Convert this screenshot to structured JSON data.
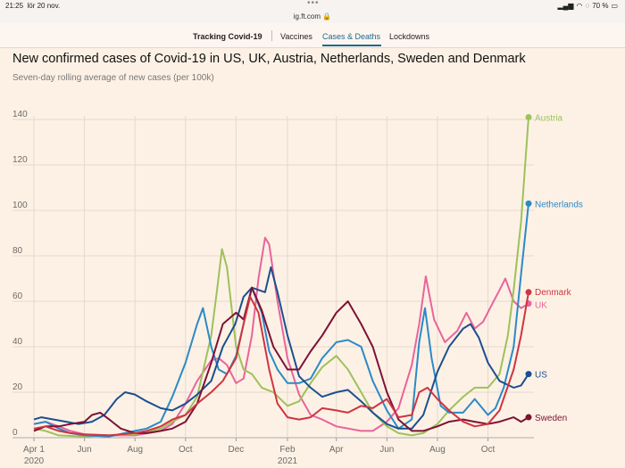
{
  "statusbar": {
    "time": "21:25",
    "date": "lör 20 nov.",
    "battery": "70 %"
  },
  "browser": {
    "url": "ig.ft.com"
  },
  "nav": {
    "brand": "Tracking Covid-19",
    "items": [
      "Vaccines",
      "Cases & Deaths",
      "Lockdowns"
    ],
    "active": "Cases & Deaths"
  },
  "colors": {
    "Austria": "#9dc15b",
    "Netherlands": "#2b8ac8",
    "Denmark": "#cf3441",
    "UK": "#e9649b",
    "US": "#1c4f8f",
    "Sweden": "#7c1235",
    "grid": "#e5d9ce",
    "text": "#6e6a66"
  },
  "chart_data": {
    "type": "line",
    "title": "New confirmed cases of Covid-19 in US, UK, Austria, Netherlands, Sweden and Denmark",
    "subtitle": "Seven-day rolling average of new cases (per 100k)",
    "xlabel": "",
    "ylabel": "",
    "ylim": [
      0,
      140
    ],
    "yticks": [
      0,
      20,
      40,
      60,
      80,
      100,
      120,
      140
    ],
    "grid": true,
    "legend": "line-end labels",
    "x_start": "2020-04-01",
    "x_end": "2021-11-19",
    "xticks": [
      {
        "date": "2020-04-01",
        "label": "Apr 1",
        "sub": "2020"
      },
      {
        "date": "2020-06-01",
        "label": "Jun"
      },
      {
        "date": "2020-08-01",
        "label": "Aug"
      },
      {
        "date": "2020-10-01",
        "label": "Oct"
      },
      {
        "date": "2020-12-01",
        "label": "Dec"
      },
      {
        "date": "2021-02-01",
        "label": "Feb",
        "sub": "2021"
      },
      {
        "date": "2021-04-01",
        "label": "Apr"
      },
      {
        "date": "2021-06-01",
        "label": "Jun"
      },
      {
        "date": "2021-08-01",
        "label": "Aug"
      },
      {
        "date": "2021-10-01",
        "label": "Oct"
      }
    ],
    "series": [
      {
        "name": "US",
        "points": [
          [
            "2020-04-01",
            8
          ],
          [
            "2020-04-10",
            9
          ],
          [
            "2020-04-25",
            8
          ],
          [
            "2020-05-10",
            7
          ],
          [
            "2020-05-25",
            6
          ],
          [
            "2020-06-10",
            7
          ],
          [
            "2020-06-25",
            10
          ],
          [
            "2020-07-10",
            17
          ],
          [
            "2020-07-20",
            20
          ],
          [
            "2020-08-01",
            19
          ],
          [
            "2020-08-15",
            16
          ],
          [
            "2020-09-01",
            13
          ],
          [
            "2020-09-15",
            12
          ],
          [
            "2020-10-01",
            15
          ],
          [
            "2020-10-15",
            19
          ],
          [
            "2020-11-01",
            25
          ],
          [
            "2020-11-15",
            40
          ],
          [
            "2020-11-30",
            50
          ],
          [
            "2020-12-10",
            62
          ],
          [
            "2020-12-20",
            66
          ],
          [
            "2021-01-05",
            64
          ],
          [
            "2021-01-12",
            75
          ],
          [
            "2021-01-20",
            64
          ],
          [
            "2021-02-01",
            45
          ],
          [
            "2021-02-15",
            27
          ],
          [
            "2021-03-01",
            22
          ],
          [
            "2021-03-15",
            18
          ],
          [
            "2021-04-01",
            20
          ],
          [
            "2021-04-15",
            21
          ],
          [
            "2021-05-01",
            16
          ],
          [
            "2021-05-15",
            11
          ],
          [
            "2021-06-01",
            6
          ],
          [
            "2021-06-15",
            4
          ],
          [
            "2021-07-01",
            4
          ],
          [
            "2021-07-15",
            10
          ],
          [
            "2021-08-01",
            29
          ],
          [
            "2021-08-15",
            40
          ],
          [
            "2021-09-01",
            48
          ],
          [
            "2021-09-10",
            50
          ],
          [
            "2021-09-20",
            44
          ],
          [
            "2021-10-01",
            33
          ],
          [
            "2021-10-15",
            25
          ],
          [
            "2021-11-01",
            22
          ],
          [
            "2021-11-10",
            23
          ],
          [
            "2021-11-19",
            28
          ]
        ]
      },
      {
        "name": "UK",
        "points": [
          [
            "2020-04-01",
            6
          ],
          [
            "2020-04-15",
            7
          ],
          [
            "2020-05-01",
            5
          ],
          [
            "2020-05-15",
            3
          ],
          [
            "2020-06-01",
            1.5
          ],
          [
            "2020-07-01",
            1
          ],
          [
            "2020-08-01",
            1
          ],
          [
            "2020-09-01",
            3
          ],
          [
            "2020-09-15",
            6
          ],
          [
            "2020-10-01",
            15
          ],
          [
            "2020-10-15",
            25
          ],
          [
            "2020-11-01",
            34
          ],
          [
            "2020-11-10",
            35
          ],
          [
            "2020-11-20",
            32
          ],
          [
            "2020-12-01",
            24
          ],
          [
            "2020-12-10",
            26
          ],
          [
            "2020-12-20",
            45
          ],
          [
            "2020-12-28",
            70
          ],
          [
            "2021-01-05",
            88
          ],
          [
            "2021-01-10",
            85
          ],
          [
            "2021-01-20",
            60
          ],
          [
            "2021-02-01",
            35
          ],
          [
            "2021-02-15",
            19
          ],
          [
            "2021-03-01",
            10
          ],
          [
            "2021-03-15",
            8
          ],
          [
            "2021-04-01",
            5
          ],
          [
            "2021-05-01",
            3
          ],
          [
            "2021-05-15",
            3
          ],
          [
            "2021-06-01",
            7
          ],
          [
            "2021-06-15",
            13
          ],
          [
            "2021-07-01",
            32
          ],
          [
            "2021-07-10",
            50
          ],
          [
            "2021-07-18,",
            71
          ],
          [
            "2021-07-28",
            52
          ],
          [
            "2021-08-10",
            42
          ],
          [
            "2021-08-25",
            47
          ],
          [
            "2021-09-05",
            55
          ],
          [
            "2021-09-15",
            48
          ],
          [
            "2021-09-25",
            51
          ],
          [
            "2021-10-05",
            58
          ],
          [
            "2021-10-15",
            65
          ],
          [
            "2021-10-22",
            70
          ],
          [
            "2021-11-01",
            60
          ],
          [
            "2021-11-10",
            57
          ],
          [
            "2021-11-19",
            59
          ]
        ]
      },
      {
        "name": "Austria",
        "points": [
          [
            "2020-04-01",
            4
          ],
          [
            "2020-04-15",
            3
          ],
          [
            "2020-05-01",
            1
          ],
          [
            "2020-06-01",
            0.5
          ],
          [
            "2020-07-01",
            1
          ],
          [
            "2020-08-01",
            1.5
          ],
          [
            "2020-09-01",
            4
          ],
          [
            "2020-09-15",
            7
          ],
          [
            "2020-10-01",
            10
          ],
          [
            "2020-10-15",
            18
          ],
          [
            "2020-11-01",
            45
          ],
          [
            "2020-11-08",
            65
          ],
          [
            "2020-11-14",
            83
          ],
          [
            "2020-11-20",
            75
          ],
          [
            "2020-12-01",
            40
          ],
          [
            "2020-12-10",
            30
          ],
          [
            "2020-12-20",
            28
          ],
          [
            "2021-01-01",
            22
          ],
          [
            "2021-01-15",
            20
          ],
          [
            "2021-02-01",
            14
          ],
          [
            "2021-02-15",
            16
          ],
          [
            "2021-03-01",
            24
          ],
          [
            "2021-03-15",
            31
          ],
          [
            "2021-04-01",
            36
          ],
          [
            "2021-04-15",
            30
          ],
          [
            "2021-05-01",
            20
          ],
          [
            "2021-05-15",
            11
          ],
          [
            "2021-06-01",
            5
          ],
          [
            "2021-06-15",
            2
          ],
          [
            "2021-07-01",
            1
          ],
          [
            "2021-07-15",
            2
          ],
          [
            "2021-08-01",
            6
          ],
          [
            "2021-08-15",
            12
          ],
          [
            "2021-09-01",
            18
          ],
          [
            "2021-09-15",
            22
          ],
          [
            "2021-10-01",
            22
          ],
          [
            "2021-10-15",
            28
          ],
          [
            "2021-10-25",
            45
          ],
          [
            "2021-11-01",
            65
          ],
          [
            "2021-11-10",
            95
          ],
          [
            "2021-11-19",
            141
          ]
        ]
      },
      {
        "name": "Netherlands",
        "points": [
          [
            "2020-04-01",
            6
          ],
          [
            "2020-04-15",
            7
          ],
          [
            "2020-05-01",
            4
          ],
          [
            "2020-05-15",
            2
          ],
          [
            "2020-06-01",
            1
          ],
          [
            "2020-07-01",
            0.5
          ],
          [
            "2020-08-01",
            3
          ],
          [
            "2020-08-15",
            4
          ],
          [
            "2020-09-01",
            7
          ],
          [
            "2020-09-15",
            18
          ],
          [
            "2020-10-01",
            33
          ],
          [
            "2020-10-15",
            50
          ],
          [
            "2020-10-22",
            57
          ],
          [
            "2020-11-01",
            40
          ],
          [
            "2020-11-10",
            30
          ],
          [
            "2020-11-20",
            28
          ],
          [
            "2020-12-01",
            36
          ],
          [
            "2020-12-10",
            50
          ],
          [
            "2020-12-20",
            66
          ],
          [
            "2021-01-01",
            55
          ],
          [
            "2021-01-10",
            38
          ],
          [
            "2021-01-20",
            30
          ],
          [
            "2021-02-01",
            24
          ],
          [
            "2021-02-15",
            24
          ],
          [
            "2021-03-01",
            26
          ],
          [
            "2021-03-15",
            35
          ],
          [
            "2021-04-01",
            42
          ],
          [
            "2021-04-15",
            43
          ],
          [
            "2021-05-01",
            40
          ],
          [
            "2021-05-15",
            25
          ],
          [
            "2021-06-01",
            12
          ],
          [
            "2021-06-15",
            4
          ],
          [
            "2021-07-01",
            8
          ],
          [
            "2021-07-10",
            42
          ],
          [
            "2021-07-17",
            57
          ],
          [
            "2021-07-25",
            35
          ],
          [
            "2021-08-05",
            14
          ],
          [
            "2021-08-15",
            11
          ],
          [
            "2021-09-01",
            11
          ],
          [
            "2021-09-15",
            17
          ],
          [
            "2021-10-01",
            10
          ],
          [
            "2021-10-10",
            13
          ],
          [
            "2021-10-20",
            22
          ],
          [
            "2021-11-01",
            40
          ],
          [
            "2021-11-10",
            72
          ],
          [
            "2021-11-19",
            103
          ]
        ]
      },
      {
        "name": "Sweden",
        "points": [
          [
            "2020-04-01",
            3
          ],
          [
            "2020-04-15",
            5
          ],
          [
            "2020-05-01",
            5
          ],
          [
            "2020-05-15",
            6
          ],
          [
            "2020-06-01",
            7
          ],
          [
            "2020-06-10",
            10
          ],
          [
            "2020-06-20",
            11
          ],
          [
            "2020-07-01",
            8
          ],
          [
            "2020-07-15",
            4
          ],
          [
            "2020-08-01",
            2
          ],
          [
            "2020-08-15",
            2
          ],
          [
            "2020-09-01",
            3
          ],
          [
            "2020-09-15",
            4
          ],
          [
            "2020-10-01",
            7
          ],
          [
            "2020-10-15",
            15
          ],
          [
            "2020-11-01",
            33
          ],
          [
            "2020-11-15",
            50
          ],
          [
            "2020-12-01",
            55
          ],
          [
            "2020-12-10",
            52
          ],
          [
            "2020-12-20",
            66
          ],
          [
            "2021-01-01",
            56
          ],
          [
            "2021-01-15",
            40
          ],
          [
            "2021-02-01",
            30
          ],
          [
            "2021-02-15",
            30
          ],
          [
            "2021-03-01",
            38
          ],
          [
            "2021-03-15",
            45
          ],
          [
            "2021-04-01",
            55
          ],
          [
            "2021-04-15",
            60
          ],
          [
            "2021-05-01",
            50
          ],
          [
            "2021-05-15",
            40
          ],
          [
            "2021-06-01",
            20
          ],
          [
            "2021-06-15",
            8
          ],
          [
            "2021-07-01",
            3
          ],
          [
            "2021-07-15",
            3
          ],
          [
            "2021-08-01",
            5
          ],
          [
            "2021-08-15",
            7
          ],
          [
            "2021-09-01",
            8
          ],
          [
            "2021-09-15",
            7
          ],
          [
            "2021-10-01",
            6
          ],
          [
            "2021-10-15",
            7
          ],
          [
            "2021-11-01",
            9
          ],
          [
            "2021-11-10",
            7
          ],
          [
            "2021-11-19",
            9
          ]
        ]
      },
      {
        "name": "Denmark",
        "points": [
          [
            "2020-04-01",
            4
          ],
          [
            "2020-04-15",
            5
          ],
          [
            "2020-05-01",
            3
          ],
          [
            "2020-05-15",
            2
          ],
          [
            "2020-06-01",
            1.5
          ],
          [
            "2020-07-01",
            1
          ],
          [
            "2020-08-01",
            2
          ],
          [
            "2020-08-15",
            3
          ],
          [
            "2020-09-01",
            5
          ],
          [
            "2020-09-15",
            8
          ],
          [
            "2020-10-01",
            10
          ],
          [
            "2020-10-15",
            15
          ],
          [
            "2020-11-01",
            20
          ],
          [
            "2020-11-15",
            25
          ],
          [
            "2020-12-01",
            35
          ],
          [
            "2020-12-10",
            50
          ],
          [
            "2020-12-18",
            62
          ],
          [
            "2020-12-28",
            55
          ],
          [
            "2021-01-10",
            30
          ],
          [
            "2021-01-20",
            15
          ],
          [
            "2021-02-01",
            9
          ],
          [
            "2021-02-15",
            8
          ],
          [
            "2021-03-01",
            9
          ],
          [
            "2021-03-15",
            13
          ],
          [
            "2021-04-01",
            12
          ],
          [
            "2021-04-15",
            11
          ],
          [
            "2021-05-01",
            14
          ],
          [
            "2021-05-15",
            13
          ],
          [
            "2021-06-01",
            17
          ],
          [
            "2021-06-15",
            9
          ],
          [
            "2021-07-01",
            10
          ],
          [
            "2021-07-10",
            20
          ],
          [
            "2021-07-20",
            22
          ],
          [
            "2021-08-01",
            17
          ],
          [
            "2021-08-15",
            12
          ],
          [
            "2021-09-01",
            7
          ],
          [
            "2021-09-15",
            5
          ],
          [
            "2021-10-01",
            6
          ],
          [
            "2021-10-15",
            12
          ],
          [
            "2021-11-01",
            30
          ],
          [
            "2021-11-10",
            45
          ],
          [
            "2021-11-19",
            64
          ]
        ]
      }
    ]
  }
}
